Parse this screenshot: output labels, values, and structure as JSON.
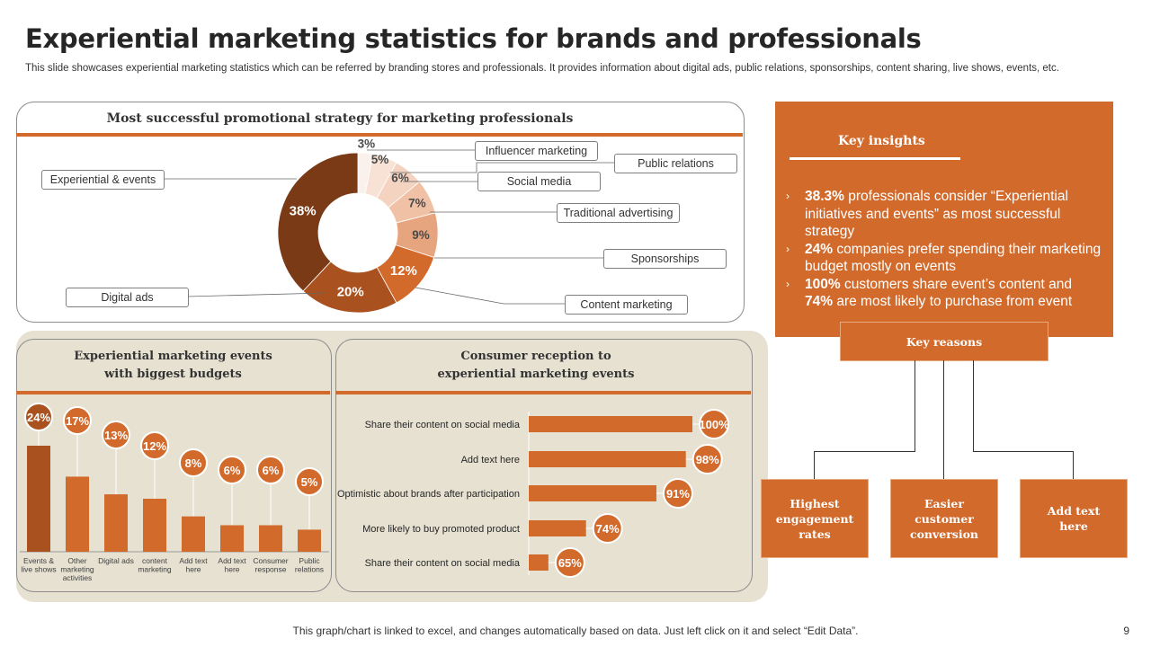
{
  "title": "Experiential marketing statistics for brands and professionals",
  "subtitle": "This slide showcases experiential marketing statistics which can be referred by branding stores and professionals. It provides information about digital ads, public relations, sponsorships, content sharing, live shows, events, etc.",
  "colors": {
    "accent": "#d26a2c",
    "dark_brown": "#7b3a16",
    "beige": "#e6e1d1"
  },
  "chart_data": [
    {
      "type": "pie",
      "variant": "donut",
      "title": "Most successful promotional strategy for marketing professionals",
      "slices": [
        {
          "label": "Influencer marketing",
          "value": 3,
          "display": "3%",
          "color": "#fbf1ec"
        },
        {
          "label": "Public relations",
          "value": 5,
          "display": "5%",
          "color": "#f8e2d6"
        },
        {
          "label": "Social media",
          "value": 6,
          "display": "6%",
          "color": "#f4d3c0"
        },
        {
          "label": "Traditional advertising",
          "value": 7,
          "display": "7%",
          "color": "#f0c1a5"
        },
        {
          "label": "Sponsorships",
          "value": 9,
          "display": "9%",
          "color": "#e6a57f"
        },
        {
          "label": "Content marketing",
          "value": 12,
          "display": "12%",
          "color": "#d26a2c"
        },
        {
          "label": "Digital ads",
          "value": 20,
          "display": "20%",
          "color": "#a9521f"
        },
        {
          "label": "Experiential & events",
          "value": 38,
          "display": "38%",
          "color": "#7b3a16"
        }
      ]
    },
    {
      "type": "bar",
      "title": "Experiential marketing events with biggest budgets",
      "title_lines": [
        "Experiential marketing events",
        "with biggest budgets"
      ],
      "categories": [
        [
          "Events &",
          "live shows"
        ],
        [
          "Other",
          "marketing",
          "activities"
        ],
        [
          "Digital ads"
        ],
        [
          "content",
          "marketing"
        ],
        [
          "Add text",
          "here"
        ],
        [
          "Add text",
          "here"
        ],
        [
          "Consumer",
          "response"
        ],
        [
          "Public",
          "relations"
        ]
      ],
      "values": [
        24,
        17,
        13,
        12,
        8,
        6,
        6,
        5
      ],
      "labels": [
        "24%",
        "17%",
        "13%",
        "12%",
        "8%",
        "6%",
        "6%",
        "5%"
      ],
      "ylim": [
        0,
        24
      ]
    },
    {
      "type": "bar",
      "orientation": "horizontal",
      "title": "Consumer reception to experiential marketing events",
      "title_lines": [
        "Consumer reception to",
        "experiential marketing events"
      ],
      "categories": [
        "Share their content on social media",
        "Add text here",
        "Optimistic about brands after participation",
        "More likely to buy promoted product",
        "Share their content on social media"
      ],
      "values": [
        100,
        98,
        91,
        74,
        65
      ],
      "labels": [
        "100%",
        "98%",
        "91%",
        "74%",
        "65%"
      ],
      "bar_values": [
        100,
        96,
        78,
        35,
        12
      ],
      "xlim": [
        0,
        100
      ]
    }
  ],
  "insights": {
    "title": "Key insights",
    "items": [
      {
        "bold": "38.3%",
        "text": " professionals consider “Experiential initiatives and events” as most successful strategy"
      },
      {
        "bold": "24%",
        "text": " companies prefer spending their marketing budget mostly on events"
      },
      {
        "bold": "100%",
        "text": " customers share event’s content and "
      },
      {
        "bold": "74%",
        "text": " are most likely to purchase from event"
      }
    ]
  },
  "reasons": {
    "title": "Key reasons",
    "items": [
      "Highest engagement rates",
      "Easier customer conversion",
      "Add text here"
    ]
  },
  "footer": "This graph/chart is linked to excel, and changes automatically based on data. Just left click on it and select “Edit Data”.",
  "page_number": "9"
}
